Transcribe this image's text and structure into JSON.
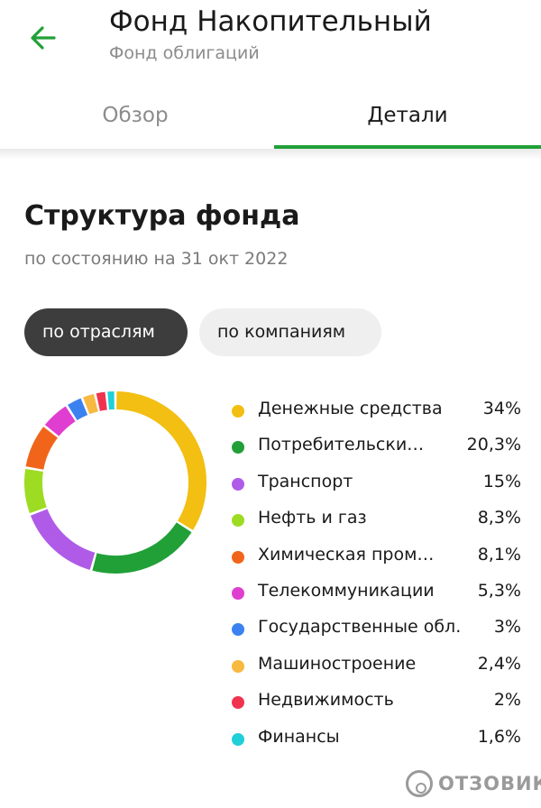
{
  "header": {
    "title": "Фонд Накопительный",
    "subtitle": "Фонд облигаций",
    "back_icon": "arrow-left-icon",
    "accent_color": "#21a038"
  },
  "tabs": [
    {
      "label": "Обзор",
      "active": false
    },
    {
      "label": "Детали",
      "active": true
    }
  ],
  "section": {
    "title": "Структура фонда",
    "date": "по состоянию на 31 окт 2022"
  },
  "filters": [
    {
      "label": "по отраслям",
      "active": true
    },
    {
      "label": "по компаниям",
      "active": false
    }
  ],
  "structure": [
    {
      "label": "Денежные средства",
      "value_text": "34%",
      "value": 34,
      "color": "#f2bf12"
    },
    {
      "label": "Потребительски…",
      "value_text": "20,3%",
      "value": 20.3,
      "color": "#21a038"
    },
    {
      "label": "Транспорт",
      "value_text": "15%",
      "value": 15,
      "color": "#b05be8"
    },
    {
      "label": "Нефть и газ",
      "value_text": "8,3%",
      "value": 8.3,
      "color": "#9ddc22"
    },
    {
      "label": "Химическая пром…",
      "value_text": "8,1%",
      "value": 8.1,
      "color": "#f0651a"
    },
    {
      "label": "Телекоммуникации",
      "value_text": "5,3%",
      "value": 5.3,
      "color": "#e03ed0"
    },
    {
      "label": "Государственные обл.",
      "value_text": "3%",
      "value": 3,
      "color": "#3b82f0"
    },
    {
      "label": "Машиностроение",
      "value_text": "2,4%",
      "value": 2.4,
      "color": "#f7b940"
    },
    {
      "label": "Недвижимость",
      "value_text": "2%",
      "value": 2,
      "color": "#f0334f"
    },
    {
      "label": "Финансы",
      "value_text": "1,6%",
      "value": 1.6,
      "color": "#1fd0d8"
    }
  ],
  "watermark": {
    "text": "ОТЗОВИК"
  }
}
